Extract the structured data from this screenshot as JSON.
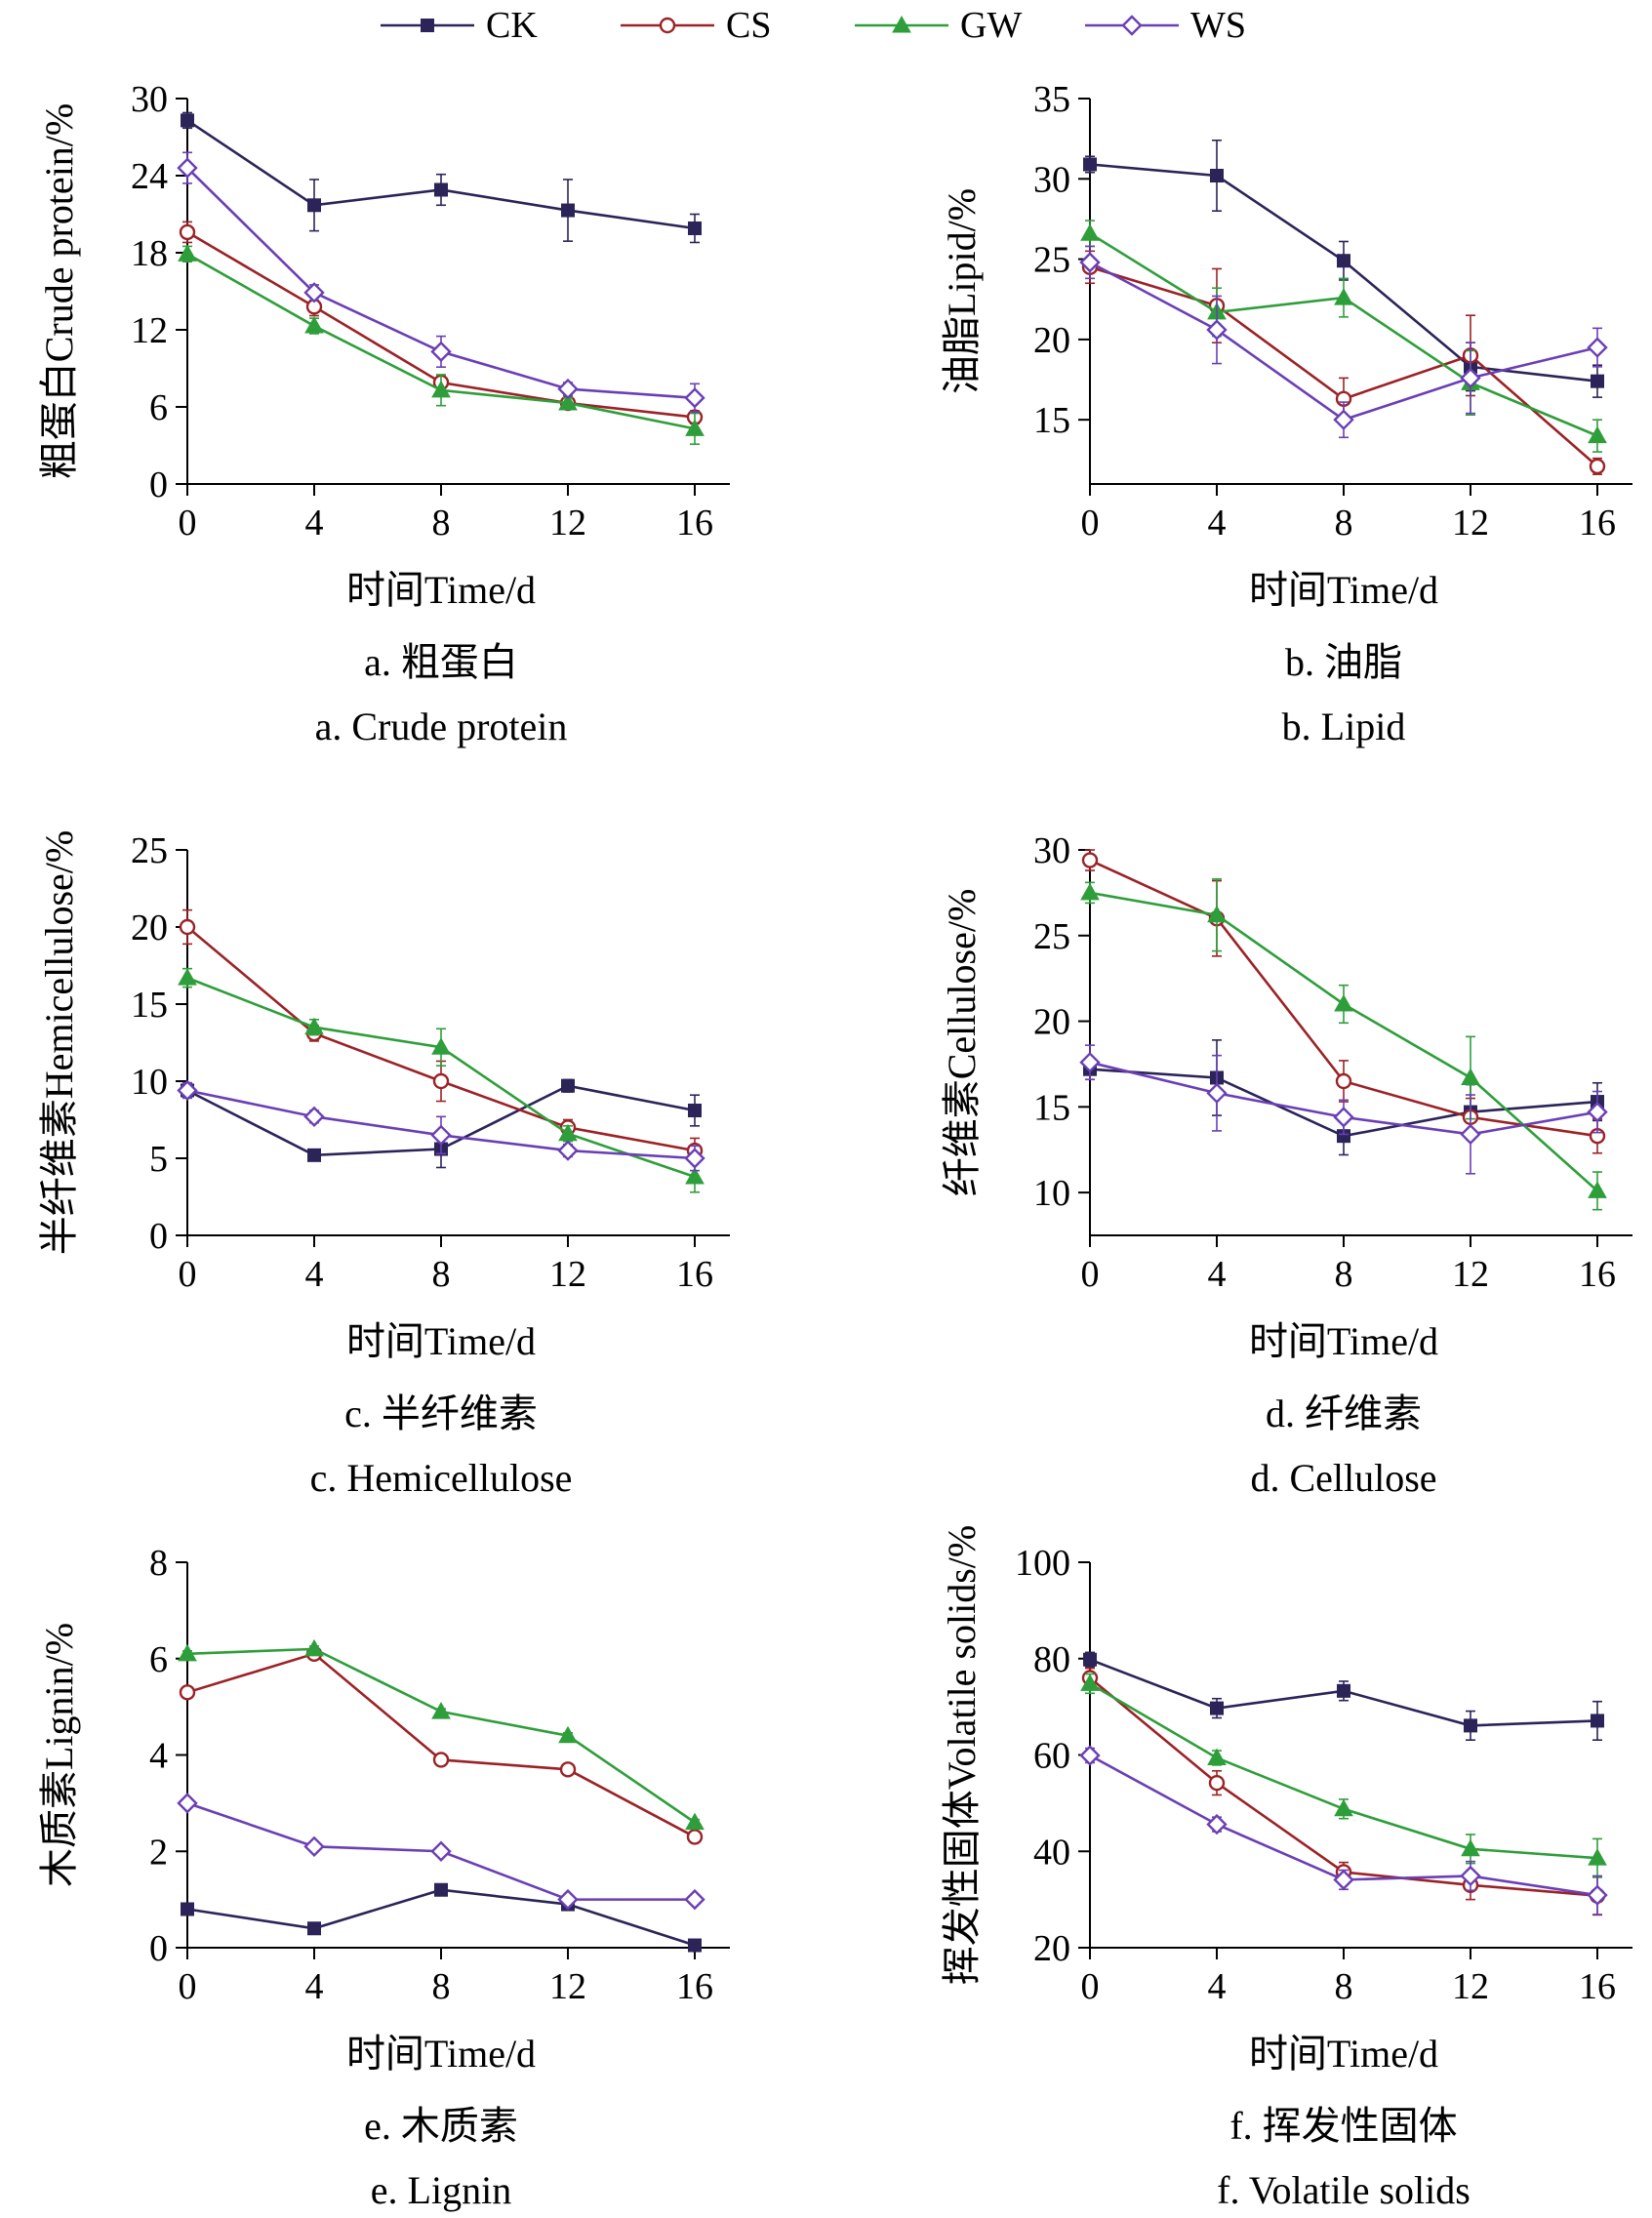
{
  "legend": {
    "placement": "top-center",
    "items": [
      {
        "name": "CK",
        "color": "#2b2458",
        "marker": "square"
      },
      {
        "name": "CS",
        "color": "#9b2226",
        "marker": "circle-open"
      },
      {
        "name": "GW",
        "color": "#2e9e3a",
        "marker": "triangle"
      },
      {
        "name": "WS",
        "color": "#6a3fb5",
        "marker": "diamond-open"
      }
    ]
  },
  "chart_data": [
    {
      "type": "line",
      "caption_cn": "a. 粗蛋白",
      "caption_en": "a. Crude protein",
      "xlabel": "时间Time/d",
      "ylabel": "粗蛋白Crude protein/%",
      "x": [
        0,
        4,
        8,
        12,
        16
      ],
      "xticks": [
        "0",
        "4",
        "8",
        "12",
        "16"
      ],
      "ylim": [
        0,
        30
      ],
      "yticks": [
        "0",
        "6",
        "12",
        "18",
        "24",
        "30"
      ],
      "series": [
        {
          "name": "CK",
          "values": [
            28.3,
            21.7,
            22.9,
            21.3,
            19.9
          ],
          "errors": [
            0.6,
            2.0,
            1.2,
            2.4,
            1.1
          ]
        },
        {
          "name": "CS",
          "values": [
            19.6,
            13.8,
            7.9,
            6.3,
            5.2
          ],
          "errors": [
            0.8,
            0.7,
            0.6,
            0.4,
            0.5
          ]
        },
        {
          "name": "GW",
          "values": [
            17.9,
            12.3,
            7.3,
            6.3,
            4.3
          ],
          "errors": [
            0.6,
            0.6,
            1.2,
            0.4,
            1.2
          ]
        },
        {
          "name": "WS",
          "values": [
            24.6,
            14.9,
            10.3,
            7.4,
            6.7
          ],
          "errors": [
            1.2,
            0.6,
            1.2,
            0.5,
            1.1
          ]
        }
      ]
    },
    {
      "type": "line",
      "caption_cn": "b. 油脂",
      "caption_en": "b. Lipid",
      "xlabel": "时间Time/d",
      "ylabel": "油脂Lipid/%",
      "x": [
        0,
        4,
        8,
        12,
        16
      ],
      "xticks": [
        "0",
        "4",
        "8",
        "12",
        "16"
      ],
      "ylim": [
        11,
        35
      ],
      "yticks": [
        "15",
        "20",
        "25",
        "30",
        "35"
      ],
      "series": [
        {
          "name": "CK",
          "values": [
            30.9,
            30.2,
            24.9,
            18.3,
            17.4
          ],
          "errors": [
            0.5,
            2.2,
            1.2,
            1.5,
            1.0
          ]
        },
        {
          "name": "CS",
          "values": [
            24.5,
            22.1,
            16.3,
            19.0,
            12.1
          ],
          "errors": [
            1.0,
            2.3,
            1.3,
            2.5,
            0.5
          ]
        },
        {
          "name": "GW",
          "values": [
            26.6,
            21.7,
            22.6,
            17.3,
            14.0
          ],
          "errors": [
            0.8,
            1.5,
            1.2,
            2.0,
            1.0
          ]
        },
        {
          "name": "WS",
          "values": [
            24.8,
            20.6,
            15.0,
            17.6,
            19.5
          ],
          "errors": [
            1.0,
            2.1,
            1.1,
            2.2,
            1.2
          ]
        }
      ]
    },
    {
      "type": "line",
      "caption_cn": "c. 半纤维素",
      "caption_en": "c. Hemicellulose",
      "xlabel": "时间Time/d",
      "ylabel": "半纤维素Hemicellulose/%",
      "x": [
        0,
        4,
        8,
        12,
        16
      ],
      "xticks": [
        "0",
        "4",
        "8",
        "12",
        "16"
      ],
      "ylim": [
        0,
        25
      ],
      "yticks": [
        "0",
        "5",
        "10",
        "15",
        "20",
        "25"
      ],
      "series": [
        {
          "name": "CK",
          "values": [
            9.4,
            5.2,
            5.6,
            9.7,
            8.1
          ],
          "errors": [
            0.4,
            0.3,
            1.2,
            0.4,
            1.0
          ]
        },
        {
          "name": "CS",
          "values": [
            20.0,
            13.1,
            10.0,
            7.0,
            5.5
          ],
          "errors": [
            1.1,
            0.5,
            1.3,
            0.5,
            0.8
          ]
        },
        {
          "name": "GW",
          "values": [
            16.7,
            13.5,
            12.2,
            6.6,
            3.8
          ],
          "errors": [
            0.6,
            0.5,
            1.2,
            0.5,
            1.0
          ]
        },
        {
          "name": "WS",
          "values": [
            9.4,
            7.7,
            6.5,
            5.5,
            5.0
          ],
          "errors": [
            0.5,
            0.4,
            1.2,
            0.4,
            0.8
          ]
        }
      ]
    },
    {
      "type": "line",
      "caption_cn": "d. 纤维素",
      "caption_en": "d. Cellulose",
      "xlabel": "时间Time/d",
      "ylabel": "纤维素Cellulose/%",
      "x": [
        0,
        4,
        8,
        12,
        16
      ],
      "xticks": [
        "0",
        "4",
        "8",
        "12",
        "16"
      ],
      "ylim": [
        7.5,
        30
      ],
      "yticks": [
        "10",
        "15",
        "20",
        "25",
        "30"
      ],
      "series": [
        {
          "name": "CK",
          "values": [
            17.2,
            16.7,
            13.3,
            14.7,
            15.3
          ],
          "errors": [
            0.6,
            2.2,
            1.1,
            1.6,
            1.1
          ]
        },
        {
          "name": "CS",
          "values": [
            29.4,
            26.0,
            16.5,
            14.4,
            13.3
          ],
          "errors": [
            0.6,
            2.2,
            1.2,
            1.1,
            1.0
          ]
        },
        {
          "name": "GW",
          "values": [
            27.5,
            26.2,
            21.0,
            16.7,
            10.1
          ],
          "errors": [
            0.6,
            2.1,
            1.1,
            2.4,
            1.1
          ]
        },
        {
          "name": "WS",
          "values": [
            17.6,
            15.8,
            14.4,
            13.4,
            14.7
          ],
          "errors": [
            1.0,
            2.2,
            1.0,
            2.3,
            1.2
          ]
        }
      ]
    },
    {
      "type": "line",
      "caption_cn": "e. 木质素",
      "caption_en": "e. Lignin",
      "xlabel": "时间Time/d",
      "ylabel": "木质素Lignin/%",
      "x": [
        0,
        4,
        8,
        12,
        16
      ],
      "xticks": [
        "0",
        "4",
        "8",
        "12",
        "16"
      ],
      "ylim": [
        0,
        8
      ],
      "yticks": [
        "0",
        "2",
        "4",
        "6",
        "8"
      ],
      "series": [
        {
          "name": "CK",
          "values": [
            0.8,
            0.4,
            1.2,
            0.9,
            0.05
          ],
          "errors": [
            0.05,
            0.05,
            0.05,
            0.05,
            0.05
          ]
        },
        {
          "name": "CS",
          "values": [
            5.3,
            6.1,
            3.9,
            3.7,
            2.3
          ],
          "errors": [
            0.08,
            0.08,
            0.08,
            0.08,
            0.08
          ]
        },
        {
          "name": "GW",
          "values": [
            6.1,
            6.2,
            4.9,
            4.4,
            2.6
          ],
          "errors": [
            0.06,
            0.06,
            0.06,
            0.06,
            0.06
          ]
        },
        {
          "name": "WS",
          "values": [
            3.0,
            2.1,
            2.0,
            1.0,
            1.0
          ],
          "errors": [
            0.06,
            0.06,
            0.06,
            0.06,
            0.06
          ]
        }
      ]
    },
    {
      "type": "line",
      "caption_cn": "f. 挥发性固体",
      "caption_en": "f. Volatile solids",
      "xlabel": "时间Time/d",
      "ylabel": "挥发性固体Volatile solids/%",
      "x": [
        0,
        4,
        8,
        12,
        16
      ],
      "xticks": [
        "0",
        "4",
        "8",
        "12",
        "16"
      ],
      "ylim": [
        20,
        100
      ],
      "yticks": [
        "20",
        "40",
        "60",
        "80",
        "100"
      ],
      "series": [
        {
          "name": "CK",
          "values": [
            79.8,
            69.7,
            73.3,
            66.1,
            67.1
          ],
          "errors": [
            1.5,
            2.0,
            2.0,
            3.0,
            4.0
          ]
        },
        {
          "name": "CS",
          "values": [
            76.0,
            54.2,
            35.7,
            33.0,
            30.8
          ],
          "errors": [
            2.0,
            2.5,
            2.0,
            3.0,
            4.0
          ]
        },
        {
          "name": "GW",
          "values": [
            74.8,
            59.4,
            48.8,
            40.5,
            38.6
          ],
          "errors": [
            2.0,
            1.5,
            2.0,
            3.0,
            4.0
          ]
        },
        {
          "name": "WS",
          "values": [
            59.9,
            45.6,
            34.1,
            34.9,
            30.9
          ],
          "errors": [
            1.5,
            1.5,
            2.0,
            3.0,
            4.0
          ]
        }
      ]
    }
  ]
}
